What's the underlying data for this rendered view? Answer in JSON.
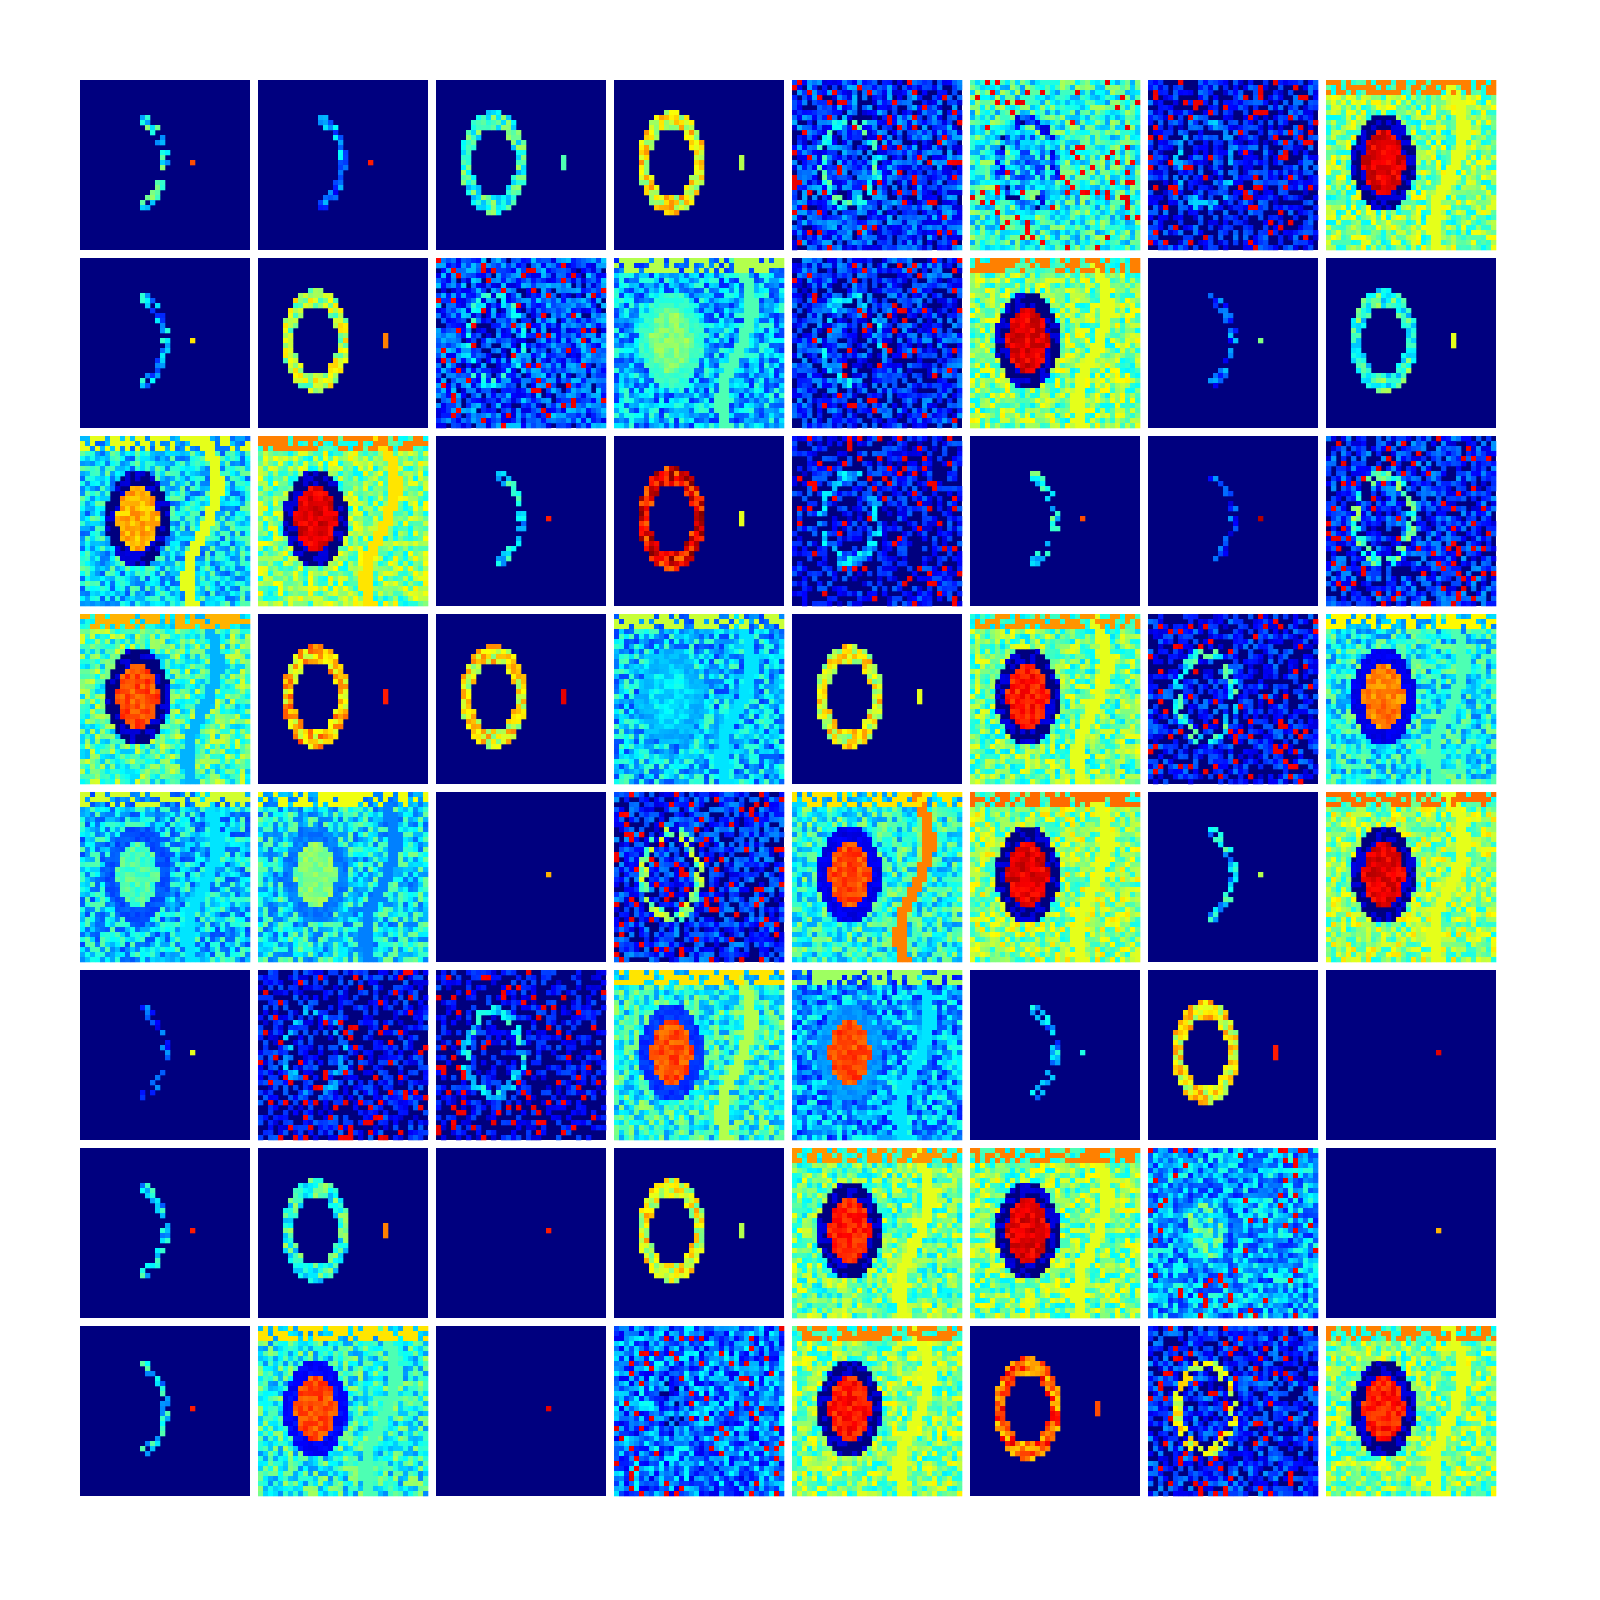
{
  "figure": {
    "rows": 8,
    "cols": 8,
    "colormap": "jet",
    "background": "#ffffff",
    "tile_background": "#00007f"
  },
  "tiles": [
    {
      "kind": "sparse",
      "lesion": 0,
      "ring": 0.35,
      "bg": 0.0,
      "arc": 0.55,
      "spot": 0.8
    },
    {
      "kind": "sparse",
      "lesion": 0,
      "ring": 0.2,
      "bg": 0.0,
      "arc": 0.75,
      "spot": 0.85
    },
    {
      "kind": "ring",
      "lesion": 0,
      "ring": 0.42,
      "bg": 0.0,
      "arc": 0.0,
      "spot": 0.45
    },
    {
      "kind": "ring",
      "lesion": 0,
      "ring": 0.62,
      "bg": 0.1,
      "arc": 0.45,
      "spot": 0.55
    },
    {
      "kind": "noise",
      "lesion": 0,
      "ring": 0.35,
      "bg": 0.18,
      "arc": 0.4,
      "spot": 0.4
    },
    {
      "kind": "noise",
      "lesion": 0.3,
      "ring": 0.1,
      "bg": 0.42,
      "arc": 0.45,
      "spot": 0.45
    },
    {
      "kind": "noise",
      "lesion": 0,
      "ring": 0.2,
      "bg": 0.12,
      "arc": 0.25,
      "spot": 0.2
    },
    {
      "kind": "full",
      "lesion": 0.95,
      "ring": 0.05,
      "bg": 0.5,
      "arc": 0.6,
      "spot": 0.6
    },
    {
      "kind": "sparse",
      "lesion": 0,
      "ring": 0.25,
      "bg": 0.0,
      "arc": 0.6,
      "spot": 0.65
    },
    {
      "kind": "ring",
      "lesion": 0,
      "ring": 0.55,
      "bg": 0.0,
      "arc": 0.55,
      "spot": 0.75
    },
    {
      "kind": "noise",
      "lesion": 0.15,
      "ring": 0.3,
      "bg": 0.2,
      "arc": 0.45,
      "spot": 0.5
    },
    {
      "kind": "full",
      "lesion": 0.55,
      "ring": 0.4,
      "bg": 0.3,
      "arc": 0.45,
      "spot": 0.45
    },
    {
      "kind": "noise",
      "lesion": 0,
      "ring": 0.25,
      "bg": 0.15,
      "arc": 0.4,
      "spot": 0.4
    },
    {
      "kind": "full",
      "lesion": 0.95,
      "ring": 0.05,
      "bg": 0.5,
      "arc": 0.6,
      "spot": 0.6
    },
    {
      "kind": "sparse",
      "lesion": 0,
      "ring": 0.15,
      "bg": 0.0,
      "arc": 0.7,
      "spot": 0.5
    },
    {
      "kind": "ring",
      "lesion": 0,
      "ring": 0.42,
      "bg": 0.0,
      "arc": 0.55,
      "spot": 0.6
    },
    {
      "kind": "full",
      "lesion": 0.75,
      "ring": 0.05,
      "bg": 0.35,
      "arc": 0.6,
      "spot": 0.4
    },
    {
      "kind": "full",
      "lesion": 0.95,
      "ring": 0.05,
      "bg": 0.5,
      "arc": 0.65,
      "spot": 0.6
    },
    {
      "kind": "sparse",
      "lesion": 0,
      "ring": 0.3,
      "bg": 0.0,
      "arc": 0.6,
      "spot": 0.85
    },
    {
      "kind": "ring",
      "lesion": 0,
      "ring": 0.88,
      "bg": 0.0,
      "arc": 0.55,
      "spot": 0.6
    },
    {
      "kind": "noise",
      "lesion": 0,
      "ring": 0.25,
      "bg": 0.1,
      "arc": 0.3,
      "spot": 0.3
    },
    {
      "kind": "sparse",
      "lesion": 0,
      "ring": 0.35,
      "bg": 0.0,
      "arc": 0.55,
      "spot": 0.8
    },
    {
      "kind": "sparse",
      "lesion": 0,
      "ring": 0.1,
      "bg": 0.0,
      "arc": 0.0,
      "spot": 0.95
    },
    {
      "kind": "noise",
      "lesion": 0,
      "ring": 0.4,
      "bg": 0.15,
      "arc": 0.4,
      "spot": 0.45
    },
    {
      "kind": "full",
      "lesion": 0.85,
      "ring": 0.05,
      "bg": 0.45,
      "arc": 0.3,
      "spot": 0.55
    },
    {
      "kind": "ring",
      "lesion": 0,
      "ring": 0.68,
      "bg": 0.0,
      "arc": 0.0,
      "spot": 0.85
    },
    {
      "kind": "ring",
      "lesion": 0,
      "ring": 0.62,
      "bg": 0.0,
      "arc": 0.6,
      "spot": 0.9
    },
    {
      "kind": "full",
      "lesion": 0.4,
      "ring": 0.28,
      "bg": 0.32,
      "arc": 0.35,
      "spot": 0.35
    },
    {
      "kind": "ring",
      "lesion": 0,
      "ring": 0.6,
      "bg": 0.0,
      "arc": 0.0,
      "spot": 0.6
    },
    {
      "kind": "full",
      "lesion": 0.9,
      "ring": 0.05,
      "bg": 0.48,
      "arc": 0.6,
      "spot": 0.6
    },
    {
      "kind": "noise",
      "lesion": 0,
      "ring": 0.35,
      "bg": 0.12,
      "arc": 0.4,
      "spot": 0.4
    },
    {
      "kind": "full",
      "lesion": 0.8,
      "ring": 0.08,
      "bg": 0.38,
      "arc": 0.45,
      "spot": 0.45
    },
    {
      "kind": "full",
      "lesion": 0.5,
      "ring": 0.18,
      "bg": 0.33,
      "arc": 0.35,
      "spot": 0.4
    },
    {
      "kind": "full",
      "lesion": 0.55,
      "ring": 0.22,
      "bg": 0.36,
      "arc": 0.25,
      "spot": 0.4
    },
    {
      "kind": "sparse",
      "lesion": 0,
      "ring": 0.0,
      "bg": 0.0,
      "arc": 0.0,
      "spot": 0.7
    },
    {
      "kind": "noise",
      "lesion": 0,
      "ring": 0.45,
      "bg": 0.15,
      "arc": 0.5,
      "spot": 0.5
    },
    {
      "kind": "full",
      "lesion": 0.85,
      "ring": 0.08,
      "bg": 0.4,
      "arc": 0.75,
      "spot": 0.6
    },
    {
      "kind": "full",
      "lesion": 0.95,
      "ring": 0.05,
      "bg": 0.52,
      "arc": 0.6,
      "spot": 0.6
    },
    {
      "kind": "sparse",
      "lesion": 0,
      "ring": 0.3,
      "bg": 0.0,
      "arc": 0.5,
      "spot": 0.55
    },
    {
      "kind": "full",
      "lesion": 0.95,
      "ring": 0.05,
      "bg": 0.52,
      "arc": 0.6,
      "spot": 0.6
    },
    {
      "kind": "sparse",
      "lesion": 0,
      "ring": 0.1,
      "bg": 0.0,
      "arc": 0.0,
      "spot": 0.6
    },
    {
      "kind": "noise",
      "lesion": 0,
      "ring": 0.2,
      "bg": 0.1,
      "arc": 0.3,
      "spot": 0.3
    },
    {
      "kind": "noise",
      "lesion": 0,
      "ring": 0.3,
      "bg": 0.08,
      "arc": 0.35,
      "spot": 0.35
    },
    {
      "kind": "full",
      "lesion": 0.85,
      "ring": 0.15,
      "bg": 0.4,
      "arc": 0.55,
      "spot": 0.5
    },
    {
      "kind": "full",
      "lesion": 0.85,
      "ring": 0.25,
      "bg": 0.28,
      "arc": 0.35,
      "spot": 0.45
    },
    {
      "kind": "sparse",
      "lesion": 0,
      "ring": 0.25,
      "bg": 0.0,
      "arc": 0.3,
      "spot": 0.4
    },
    {
      "kind": "ring",
      "lesion": 0,
      "ring": 0.62,
      "bg": 0.0,
      "arc": 0.0,
      "spot": 0.85
    },
    {
      "kind": "sparse",
      "lesion": 0,
      "ring": 0.0,
      "bg": 0.0,
      "arc": 0.0,
      "spot": 0.9
    },
    {
      "kind": "sparse",
      "lesion": 0,
      "ring": 0.3,
      "bg": 0.0,
      "arc": 0.5,
      "spot": 0.85
    },
    {
      "kind": "ring",
      "lesion": 0,
      "ring": 0.42,
      "bg": 0.0,
      "arc": 0.0,
      "spot": 0.75
    },
    {
      "kind": "sparse",
      "lesion": 0,
      "ring": 0.0,
      "bg": 0.0,
      "arc": 0.0,
      "spot": 0.85
    },
    {
      "kind": "ring",
      "lesion": 0,
      "ring": 0.6,
      "bg": 0.08,
      "arc": 0.45,
      "spot": 0.55
    },
    {
      "kind": "full",
      "lesion": 0.9,
      "ring": 0.05,
      "bg": 0.48,
      "arc": 0.6,
      "spot": 0.6
    },
    {
      "kind": "full",
      "lesion": 0.95,
      "ring": 0.05,
      "bg": 0.5,
      "arc": 0.6,
      "spot": 0.6
    },
    {
      "kind": "noise",
      "lesion": 0.4,
      "ring": 0.2,
      "bg": 0.3,
      "arc": 0.4,
      "spot": 0.4
    },
    {
      "kind": "sparse",
      "lesion": 0,
      "ring": 0.0,
      "bg": 0.0,
      "arc": 0.4,
      "spot": 0.7
    },
    {
      "kind": "sparse",
      "lesion": 0,
      "ring": 0.3,
      "bg": 0.0,
      "arc": 0.5,
      "spot": 0.85
    },
    {
      "kind": "full",
      "lesion": 0.85,
      "ring": 0.1,
      "bg": 0.4,
      "arc": 0.45,
      "spot": 0.45
    },
    {
      "kind": "sparse",
      "lesion": 0,
      "ring": 0.0,
      "bg": 0.0,
      "arc": 0.0,
      "spot": 0.9
    },
    {
      "kind": "noise",
      "lesion": 0.2,
      "ring": 0.25,
      "bg": 0.25,
      "arc": 0.4,
      "spot": 0.4
    },
    {
      "kind": "full",
      "lesion": 0.9,
      "ring": 0.05,
      "bg": 0.5,
      "arc": 0.6,
      "spot": 0.6
    },
    {
      "kind": "ring",
      "lesion": 0,
      "ring": 0.78,
      "bg": 0.0,
      "arc": 0.0,
      "spot": 0.8
    },
    {
      "kind": "noise",
      "lesion": 0,
      "ring": 0.55,
      "bg": 0.15,
      "arc": 0.55,
      "spot": 0.55
    },
    {
      "kind": "full",
      "lesion": 0.9,
      "ring": 0.05,
      "bg": 0.5,
      "arc": 0.6,
      "spot": 0.6
    }
  ]
}
